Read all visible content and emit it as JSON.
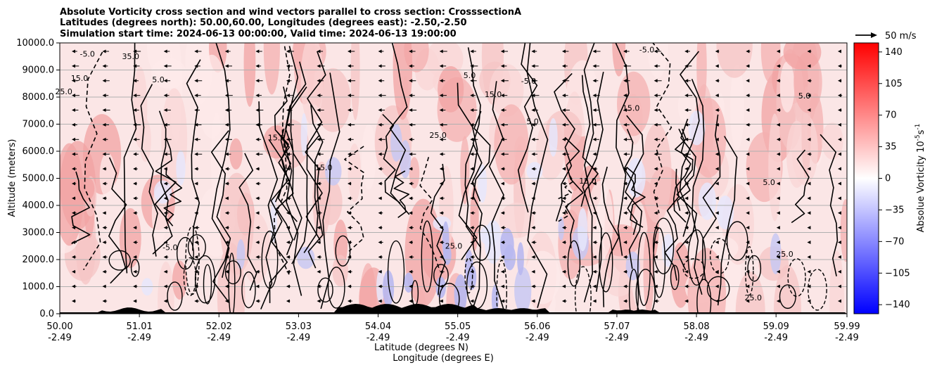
{
  "chart_data": {
    "type": "heatmap",
    "title_lines": [
      "Absolute Vorticity cross section and wind vectors parallel to cross section: CrosssectionA",
      "Latitudes (degrees north): 50.00,60.00, Longitudes (degrees east): -2.50,-2.50",
      "Simulation start time: 2024-06-13 00:00:00, Valid time: 2024-06-13 19:00:00"
    ],
    "xlabel_lines": [
      "Latitude (degrees N)",
      "Longitude (degrees E)"
    ],
    "ylabel": "Altitude (meters)",
    "x_ticks": [
      {
        "lat": "50.00",
        "lon": "-2.49",
        "value": 50.0
      },
      {
        "lat": "51.01",
        "lon": "-2.49",
        "value": 51.01
      },
      {
        "lat": "52.02",
        "lon": "-2.49",
        "value": 52.02
      },
      {
        "lat": "53.03",
        "lon": "-2.49",
        "value": 53.03
      },
      {
        "lat": "54.04",
        "lon": "-2.49",
        "value": 54.04
      },
      {
        "lat": "55.05",
        "lon": "-2.49",
        "value": 55.05
      },
      {
        "lat": "56.06",
        "lon": "-2.49",
        "value": 56.06
      },
      {
        "lat": "57.07",
        "lon": "-2.49",
        "value": 57.07
      },
      {
        "lat": "58.08",
        "lon": "-2.49",
        "value": 58.08
      },
      {
        "lat": "59.09",
        "lon": "-2.49",
        "value": 59.09
      },
      {
        "lat": "59.99",
        "lon": "-2.49",
        "value": 59.99
      }
    ],
    "xlim": [
      50.0,
      59.99
    ],
    "y_ticks": [
      "0.0",
      "1000.0",
      "2000.0",
      "3000.0",
      "4000.0",
      "5000.0",
      "6000.0",
      "7000.0",
      "8000.0",
      "9000.0",
      "10000.0"
    ],
    "ylim": [
      0,
      10000
    ],
    "grid": "horizontal",
    "colorbar": {
      "label": "Absolue Vorticity 10",
      "label_superscripts": [
        "-5",
        "-1"
      ],
      "label_unit": "s",
      "ticks": [
        "140",
        "105",
        "70",
        "35",
        "0",
        "−35",
        "−70",
        "−105",
        "−140"
      ],
      "range": [
        -150,
        150
      ],
      "colormap": "bwr",
      "color_low": "#0000ff",
      "color_mid": "#ffffff",
      "color_high": "#ff0000"
    },
    "quiver_key": {
      "label": "50 m/s",
      "value": 50
    },
    "wind_vectors": {
      "direction": "toward lower latitude",
      "typical_speed_ms": 10
    },
    "contour_levels": [
      -5.0,
      5.0,
      15.0,
      25.0,
      35.0
    ],
    "contour_labels": [
      {
        "text": "-5.0",
        "lat": 50.35,
        "alt": 9500
      },
      {
        "text": "35.0",
        "lat": 50.9,
        "alt": 9400
      },
      {
        "text": "5.0",
        "lat": 51.25,
        "alt": 8550
      },
      {
        "text": "15.0",
        "lat": 50.25,
        "alt": 8600
      },
      {
        "text": "25.0",
        "lat": 50.05,
        "alt": 8100
      },
      {
        "text": "15.0",
        "lat": 52.75,
        "alt": 6400
      },
      {
        "text": "15.0",
        "lat": 53.35,
        "alt": 5300
      },
      {
        "text": "15.0",
        "lat": 55.5,
        "alt": 8000
      },
      {
        "text": "-5.0",
        "lat": 55.95,
        "alt": 8500
      },
      {
        "text": "-5.0",
        "lat": 57.45,
        "alt": 9650
      },
      {
        "text": "15.0",
        "lat": 57.25,
        "alt": 7500
      },
      {
        "text": "5.0",
        "lat": 59.45,
        "alt": 7950
      },
      {
        "text": "15.0",
        "lat": 56.7,
        "alt": 4800
      },
      {
        "text": "5.0",
        "lat": 59.0,
        "alt": 4750
      },
      {
        "text": "-5.0",
        "lat": 51.4,
        "alt": 2350
      },
      {
        "text": "25.0",
        "lat": 55.0,
        "alt": 2400
      },
      {
        "text": "25.0",
        "lat": 59.2,
        "alt": 2100
      },
      {
        "text": "5.0",
        "lat": 55.2,
        "alt": 8700
      },
      {
        "text": "25.0",
        "lat": 54.8,
        "alt": 6500
      },
      {
        "text": "5.0",
        "lat": 56.0,
        "alt": 7000
      },
      {
        "text": "25.0",
        "lat": 58.8,
        "alt": 500
      }
    ]
  }
}
